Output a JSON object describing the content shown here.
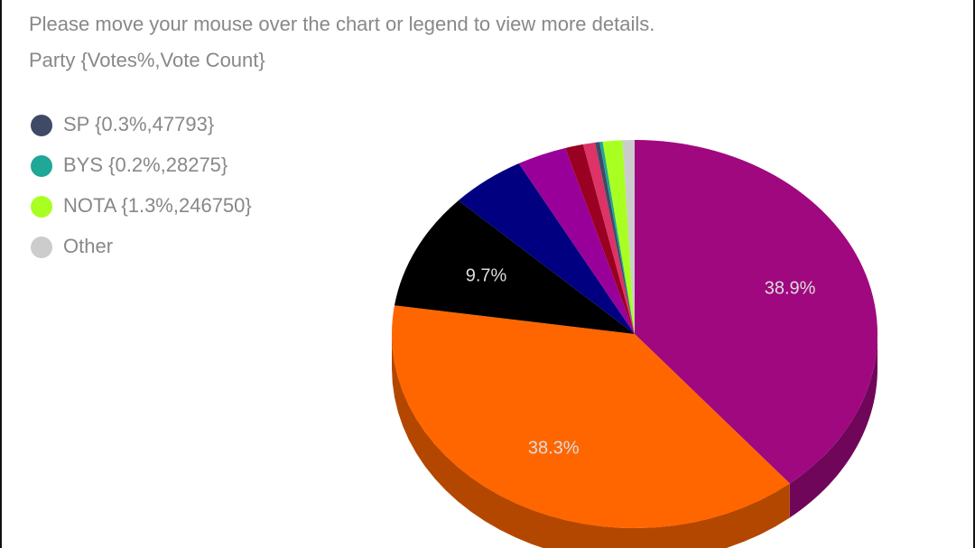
{
  "chart_data": {
    "type": "pie",
    "title": "Please move your mouse over the chart or legend to view more details.",
    "subtitle": "Party {Votes%,Vote Count}",
    "categories": [
      null,
      null,
      null,
      null,
      null,
      null,
      null,
      "SP {0.3%,47793}",
      "BYS {0.2%,28275}",
      "NOTA {1.3%,246750}",
      "Other"
    ],
    "values": [
      38.9,
      38.3,
      9.7,
      5.0,
      3.3,
      1.2,
      0.8,
      0.3,
      0.2,
      1.3,
      0.8
    ],
    "value_labels": [
      "38.9%",
      "38.3%",
      "9.7%",
      null,
      null,
      null,
      null,
      null,
      null,
      null,
      null
    ],
    "colors": [
      "#a0087f",
      "#ff6600",
      "#000000",
      "#000080",
      "#990099",
      "#990022",
      "#dd3366",
      "#3f4a66",
      "#1fa797",
      "#aaff22",
      "#cccccc"
    ]
  }
}
